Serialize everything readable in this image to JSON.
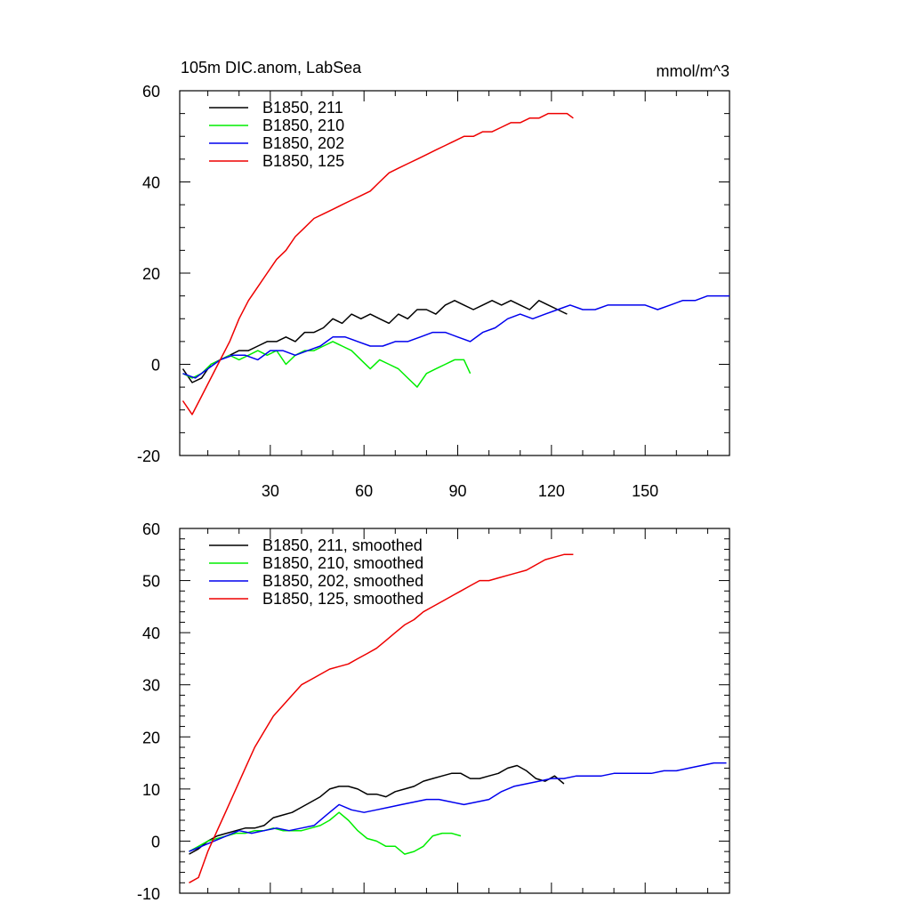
{
  "chart_data": [
    {
      "type": "line",
      "title": "105m DIC.anom, LabSea",
      "units": "mmol/m^3",
      "xlim": [
        1,
        177
      ],
      "ylim": [
        -20,
        60
      ],
      "xticks": [
        30,
        60,
        90,
        120,
        150
      ],
      "xticklabels": [
        "30",
        "60",
        "90",
        "120",
        "150"
      ],
      "yticks": [
        -20,
        0,
        20,
        40,
        60
      ],
      "yticklabels": [
        "-20",
        "0",
        "20",
        "40",
        "60"
      ],
      "legend": "top-left",
      "series": [
        {
          "name": "B1850, 211",
          "color": "#000000",
          "x": [
            2,
            5,
            8,
            11,
            14,
            17,
            20,
            23,
            26,
            29,
            32,
            35,
            38,
            41,
            44,
            47,
            50,
            53,
            56,
            59,
            62,
            65,
            68,
            71,
            74,
            77,
            80,
            83,
            86,
            89,
            92,
            95,
            98,
            101,
            104,
            107,
            110,
            113,
            116,
            119,
            122,
            125
          ],
          "y": [
            -1,
            -4,
            -3,
            0,
            1,
            2,
            3,
            3,
            4,
            5,
            5,
            6,
            5,
            7,
            7,
            8,
            10,
            9,
            11,
            10,
            11,
            10,
            9,
            11,
            10,
            12,
            12,
            11,
            13,
            14,
            13,
            12,
            13,
            14,
            13,
            14,
            13,
            12,
            14,
            13,
            12,
            11
          ]
        },
        {
          "name": "B1850, 210",
          "color": "#00ee00",
          "x": [
            2,
            5,
            8,
            11,
            14,
            17,
            20,
            23,
            26,
            29,
            32,
            35,
            38,
            41,
            44,
            47,
            50,
            53,
            56,
            59,
            62,
            65,
            68,
            71,
            74,
            77,
            80,
            83,
            86,
            89,
            92,
            94
          ],
          "y": [
            -2,
            -3,
            -2,
            0,
            1,
            2,
            1,
            2,
            3,
            2,
            3,
            0,
            2,
            3,
            3,
            4,
            5,
            4,
            3,
            1,
            -1,
            1,
            0,
            -1,
            -3,
            -5,
            -2,
            -1,
            0,
            1,
            1,
            -2
          ]
        },
        {
          "name": "B1850, 202",
          "color": "#0000ee",
          "x": [
            2,
            6,
            10,
            14,
            18,
            22,
            26,
            30,
            34,
            38,
            42,
            46,
            50,
            54,
            58,
            62,
            66,
            70,
            74,
            78,
            82,
            86,
            90,
            94,
            98,
            102,
            106,
            110,
            114,
            118,
            122,
            126,
            130,
            134,
            138,
            142,
            146,
            150,
            154,
            158,
            162,
            166,
            170,
            174,
            177
          ],
          "y": [
            -2,
            -3,
            -1,
            1,
            2,
            2,
            1,
            3,
            3,
            2,
            3,
            4,
            6,
            6,
            5,
            4,
            4,
            5,
            5,
            6,
            7,
            7,
            6,
            5,
            7,
            8,
            10,
            11,
            10,
            11,
            12,
            13,
            12,
            12,
            13,
            13,
            13,
            13,
            12,
            13,
            14,
            14,
            15,
            15,
            15
          ]
        },
        {
          "name": "B1850, 125",
          "color": "#ee0000",
          "x": [
            2,
            5,
            8,
            11,
            14,
            17,
            20,
            23,
            26,
            29,
            32,
            35,
            38,
            41,
            44,
            47,
            50,
            53,
            56,
            59,
            62,
            65,
            68,
            71,
            74,
            77,
            80,
            83,
            86,
            89,
            92,
            95,
            98,
            101,
            104,
            107,
            110,
            113,
            116,
            119,
            122,
            125,
            127
          ],
          "y": [
            -8,
            -11,
            -7,
            -3,
            1,
            5,
            10,
            14,
            17,
            20,
            23,
            25,
            28,
            30,
            32,
            33,
            34,
            35,
            36,
            37,
            38,
            40,
            42,
            43,
            44,
            45,
            46,
            47,
            48,
            49,
            50,
            50,
            51,
            51,
            52,
            53,
            53,
            54,
            54,
            55,
            55,
            55,
            54
          ]
        }
      ]
    },
    {
      "type": "line",
      "title": "",
      "xlim": [
        1,
        177
      ],
      "ylim": [
        -10,
        60
      ],
      "xticks": [
        30,
        60,
        90,
        120,
        150
      ],
      "xticklabels": [
        "",
        "",
        "",
        "",
        ""
      ],
      "yticks": [
        -10,
        0,
        10,
        20,
        30,
        40,
        50,
        60
      ],
      "yticklabels": [
        "-10",
        "0",
        "10",
        "20",
        "30",
        "40",
        "50",
        "60"
      ],
      "legend": "top-left",
      "series": [
        {
          "name": "B1850, 211, smoothed",
          "color": "#000000",
          "x": [
            4,
            7,
            10,
            13,
            16,
            19,
            22,
            25,
            28,
            31,
            34,
            37,
            40,
            43,
            46,
            49,
            52,
            55,
            58,
            61,
            64,
            67,
            70,
            73,
            76,
            79,
            82,
            85,
            88,
            91,
            94,
            97,
            100,
            103,
            106,
            109,
            112,
            115,
            118,
            121,
            124
          ],
          "y": [
            -2.5,
            -1.5,
            0,
            1,
            1.5,
            2,
            2.5,
            2.5,
            3,
            4.5,
            5,
            5.5,
            6.5,
            7.5,
            8.5,
            10,
            10.5,
            10.5,
            10,
            9,
            9,
            8.5,
            9.5,
            10,
            10.5,
            11.5,
            12,
            12.5,
            13,
            13,
            12,
            12,
            12.5,
            13,
            14,
            14.5,
            13.5,
            12,
            11.5,
            12.5,
            11
          ]
        },
        {
          "name": "B1850, 210, smoothed",
          "color": "#00ee00",
          "x": [
            4,
            7,
            10,
            13,
            16,
            19,
            22,
            25,
            28,
            31,
            34,
            37,
            40,
            43,
            46,
            49,
            52,
            55,
            58,
            61,
            64,
            67,
            70,
            73,
            76,
            79,
            82,
            85,
            88,
            91
          ],
          "y": [
            -2,
            -1,
            0,
            0.5,
            1,
            1.5,
            1.5,
            2,
            2,
            2.5,
            2,
            2,
            2,
            2.5,
            3,
            4,
            5.5,
            4,
            2,
            0.5,
            0,
            -1,
            -1,
            -2.5,
            -2,
            -1,
            1,
            1.5,
            1.5,
            1
          ]
        },
        {
          "name": "B1850, 202, smoothed",
          "color": "#0000ee",
          "x": [
            4,
            8,
            12,
            16,
            20,
            24,
            28,
            32,
            36,
            40,
            44,
            48,
            52,
            56,
            60,
            64,
            68,
            72,
            76,
            80,
            84,
            88,
            92,
            96,
            100,
            104,
            108,
            112,
            116,
            120,
            124,
            128,
            132,
            136,
            140,
            144,
            148,
            152,
            156,
            160,
            164,
            168,
            172,
            176
          ],
          "y": [
            -2,
            -1,
            0,
            1,
            2,
            1.5,
            2,
            2.5,
            2,
            2.5,
            3,
            5,
            7,
            6,
            5.5,
            6,
            6.5,
            7,
            7.5,
            8,
            8,
            7.5,
            7,
            7.5,
            8,
            9.5,
            10.5,
            11,
            11.5,
            12,
            12,
            12.5,
            12.5,
            12.5,
            13,
            13,
            13,
            13,
            13.5,
            13.5,
            14,
            14.5,
            15,
            15
          ]
        },
        {
          "name": "B1850, 125, smoothed",
          "color": "#ee0000",
          "x": [
            4,
            7,
            10,
            13,
            16,
            19,
            22,
            25,
            28,
            31,
            34,
            37,
            40,
            43,
            46,
            49,
            52,
            55,
            58,
            61,
            64,
            67,
            70,
            73,
            76,
            79,
            82,
            85,
            88,
            91,
            94,
            97,
            100,
            103,
            106,
            109,
            112,
            115,
            118,
            121,
            124,
            127
          ],
          "y": [
            -8,
            -7,
            -2,
            2,
            6,
            10,
            14,
            18,
            21,
            24,
            26,
            28,
            30,
            31,
            32,
            33,
            33.5,
            34,
            35,
            36,
            37,
            38.5,
            40,
            41.5,
            42.5,
            44,
            45,
            46,
            47,
            48,
            49,
            50,
            50,
            50.5,
            51,
            51.5,
            52,
            53,
            54,
            54.5,
            55,
            55
          ]
        }
      ]
    }
  ]
}
